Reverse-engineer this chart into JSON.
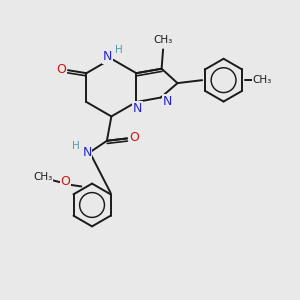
{
  "background_color": "#e9e9e9",
  "bond_color": "#1a1a1a",
  "nitrogen_color": "#2525cc",
  "oxygen_color": "#cc1515",
  "h_color": "#5599aa",
  "figsize": [
    3.0,
    3.0
  ],
  "dpi": 100,
  "xlim": [
    0,
    10
  ],
  "ylim": [
    0,
    10
  ]
}
